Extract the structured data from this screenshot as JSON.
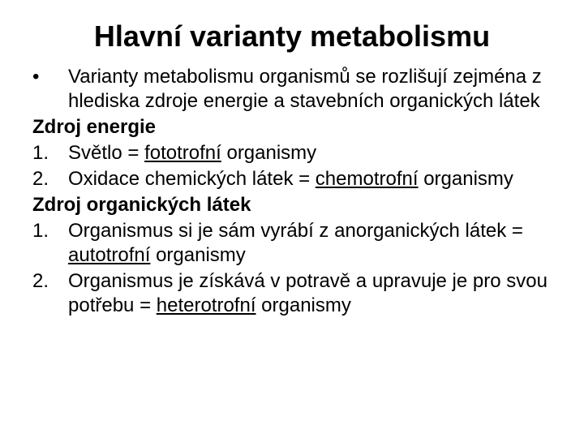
{
  "title": "Hlavní varianty metabolismu",
  "bullet": {
    "marker": "•",
    "text_a": "Varianty metabolismu organismů se rozlišují zejména z hlediska zdroje energie a stavebních organických látek"
  },
  "section1": {
    "heading": "Zdroj energie",
    "items": [
      {
        "marker": "1.",
        "pre": "Světlo = ",
        "u": "fototrofní",
        "post": " organismy"
      },
      {
        "marker": "2.",
        "pre": "Oxidace chemických látek = ",
        "u": "chemotrofní",
        "post": " organismy"
      }
    ]
  },
  "section2": {
    "heading": "Zdroj organických látek",
    "items": [
      {
        "marker": "1.",
        "pre": "Organismus si je sám vyrábí z anorganických látek = ",
        "u": "autotrofní",
        "post": " organismy"
      },
      {
        "marker": "2.",
        "pre": "Organismus je získává v potravě a upravuje je pro svou potřebu = ",
        "u": "heterotrofní",
        "post": " organismy"
      }
    ]
  }
}
